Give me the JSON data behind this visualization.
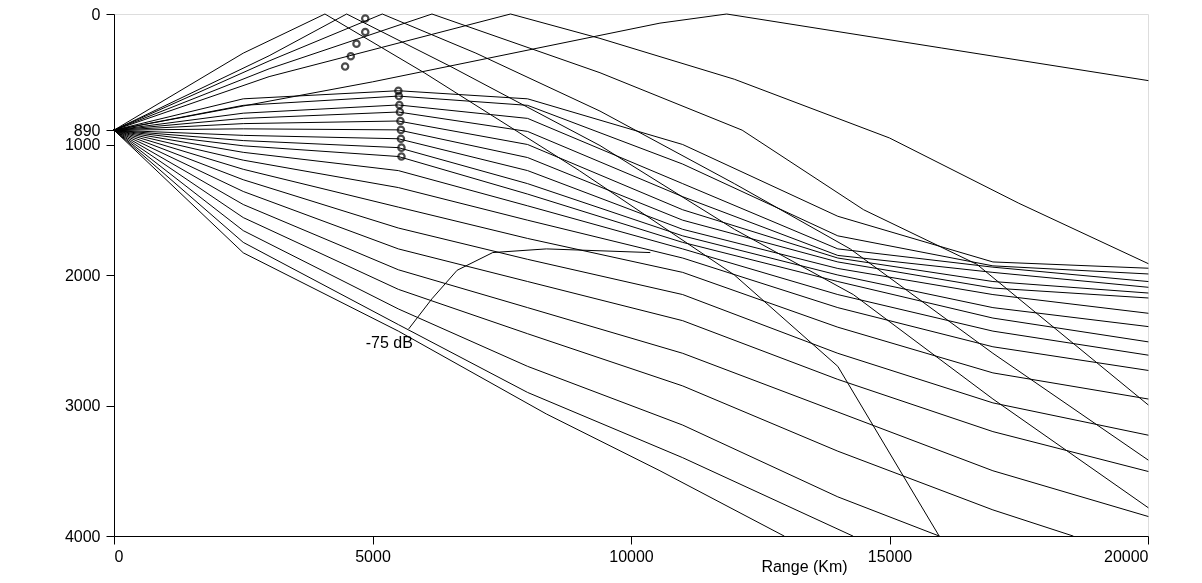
{
  "chart_data": {
    "type": "line",
    "xlabel": "Range (Km)",
    "xlim": [
      0,
      20000
    ],
    "xticks": [
      0,
      5000,
      10000,
      15000,
      20000
    ],
    "ylim": [
      4000,
      0
    ],
    "yticks": [
      0,
      890,
      1000,
      2000,
      3000,
      4000
    ],
    "grid": false,
    "marker": "none",
    "line_style": "solid",
    "annotations": [
      {
        "text": "-75 dB",
        "x": 5704,
        "y": 2411
      }
    ],
    "series": [
      {
        "color": "#000000",
        "x": [
          0,
          5000,
          10560,
          11850,
          16000,
          20000
        ],
        "values": [
          890,
          520,
          70,
          0,
          260,
          510
        ]
      },
      {
        "color": "#000000",
        "x": [
          0,
          3000,
          7670,
          9400,
          12000,
          15000,
          17500,
          20000
        ],
        "values": [
          890,
          480,
          0,
          187,
          500,
          950,
          1450,
          1912
        ]
      },
      {
        "color": "#000000",
        "x": [
          0,
          3000,
          6150,
          9400,
          12150,
          14500,
          16690,
          20000
        ],
        "values": [
          890,
          420,
          0,
          450,
          890,
          1500,
          1918,
          2994
        ]
      },
      {
        "color": "#000000",
        "x": [
          0,
          3000,
          5190,
          7000,
          9400,
          12000,
          14240,
          17000,
          20000
        ],
        "values": [
          890,
          360,
          0,
          300,
          744,
          1300,
          1800,
          2600,
          3417
        ]
      },
      {
        "color": "#000000",
        "x": [
          0,
          3000,
          4500,
          6500,
          9400,
          12000,
          14300,
          17000,
          20000
        ],
        "values": [
          890,
          320,
          0,
          400,
          1008,
          1650,
          2150,
          2950,
          3782
        ]
      },
      {
        "color": "#000000",
        "x": [
          0,
          2500,
          4080,
          6000,
          9000,
          12000,
          14000,
          15960
        ],
        "values": [
          890,
          300,
          0,
          450,
          1200,
          2000,
          2700,
          4000
        ]
      },
      {
        "color": "#000000",
        "x": [
          0,
          2500,
          5500,
          8000,
          11000,
          14000,
          17000,
          20000
        ],
        "values": [
          890,
          650,
          588,
          650,
          1000,
          1550,
          1900,
          1948
        ]
      },
      {
        "color": "#000000",
        "x": [
          0,
          2500,
          5500,
          8000,
          11000,
          14000,
          17000,
          20000
        ],
        "values": [
          890,
          700,
          629,
          700,
          1150,
          1700,
          1930,
          1992
        ]
      },
      {
        "color": "#000000",
        "x": [
          0,
          2500,
          5500,
          8000,
          11000,
          14000,
          17000,
          20000
        ],
        "values": [
          890,
          760,
          697,
          800,
          1300,
          1800,
          1940,
          2050
        ]
      },
      {
        "color": "#000000",
        "x": [
          0,
          2500,
          5500,
          8000,
          11000,
          14000,
          17000,
          20000
        ],
        "values": [
          890,
          800,
          751,
          900,
          1400,
          1850,
          1980,
          2094
        ]
      },
      {
        "color": "#000000",
        "x": [
          0,
          2500,
          5500,
          8000,
          11000,
          14000,
          17000,
          20000
        ],
        "values": [
          890,
          840,
          820,
          1000,
          1500,
          1870,
          2050,
          2138
        ]
      },
      {
        "color": "#000000",
        "x": [
          0,
          2500,
          5500,
          8000,
          11000,
          14000,
          17000,
          20000
        ],
        "values": [
          890,
          880,
          888,
          1100,
          1580,
          1900,
          2100,
          2176
        ]
      },
      {
        "color": "#000000",
        "x": [
          0,
          2500,
          5500,
          8000,
          11000,
          14000,
          17000,
          20000
        ],
        "values": [
          890,
          930,
          956,
          1200,
          1650,
          1950,
          2150,
          2293
        ]
      },
      {
        "color": "#000000",
        "x": [
          0,
          2500,
          5500,
          8000,
          11000,
          14000,
          17000,
          20000
        ],
        "values": [
          890,
          970,
          1024,
          1300,
          1700,
          2000,
          2250,
          2395
        ]
      },
      {
        "color": "#000000",
        "x": [
          0,
          2500,
          5500,
          8000,
          11000,
          14000,
          17000,
          20000
        ],
        "values": [
          890,
          1010,
          1092,
          1380,
          1750,
          2050,
          2330,
          2512
        ]
      },
      {
        "color": "#000000",
        "x": [
          0,
          2500,
          5500,
          8000,
          11000,
          14000,
          17000,
          20000
        ],
        "values": [
          890,
          1060,
          1200,
          1470,
          1800,
          2150,
          2430,
          2614
        ]
      },
      {
        "color": "#000000",
        "x": [
          0,
          2500,
          5500,
          8000,
          11000,
          14000,
          17000,
          20000
        ],
        "values": [
          890,
          1120,
          1330,
          1580,
          1870,
          2250,
          2550,
          2731
        ]
      },
      {
        "color": "#000000",
        "x": [
          0,
          2500,
          5500,
          8000,
          11000,
          14000,
          17000,
          20000
        ],
        "values": [
          890,
          1190,
          1480,
          1720,
          1980,
          2400,
          2750,
          2950
        ]
      },
      {
        "color": "#000000",
        "x": [
          0,
          2500,
          5500,
          8000,
          11000,
          14000,
          17000,
          20000
        ],
        "values": [
          890,
          1270,
          1640,
          1880,
          2150,
          2600,
          2980,
          3227
        ]
      },
      {
        "color": "#000000",
        "x": [
          0,
          2500,
          5500,
          8000,
          11000,
          14000,
          17000,
          20000
        ],
        "values": [
          890,
          1360,
          1800,
          2050,
          2350,
          2800,
          3200,
          3505
        ]
      },
      {
        "color": "#000000",
        "x": [
          0,
          2500,
          5500,
          8000,
          11000,
          14000,
          17000,
          20000
        ],
        "values": [
          890,
          1460,
          1960,
          2250,
          2600,
          3050,
          3500,
          3850
        ]
      },
      {
        "color": "#000000",
        "x": [
          0,
          2500,
          5500,
          8000,
          11000,
          14000,
          17000,
          18550
        ],
        "values": [
          890,
          1560,
          2110,
          2450,
          2850,
          3350,
          3800,
          4000
        ]
      },
      {
        "color": "#000000",
        "x": [
          0,
          2500,
          5500,
          8000,
          11000,
          14000,
          15960
        ],
        "values": [
          890,
          1660,
          2260,
          2700,
          3150,
          3700,
          4000
        ]
      },
      {
        "color": "#000000",
        "x": [
          0,
          2500,
          5500,
          8000,
          11000,
          14290
        ],
        "values": [
          890,
          1750,
          2380,
          2900,
          3400,
          4000
        ]
      },
      {
        "color": "#000000",
        "x": [
          0,
          2500,
          5500,
          8363,
          10560,
          12960
        ],
        "values": [
          890,
          1830,
          2430,
          3065,
          3500,
          4000
        ]
      },
      {
        "color": "#000000",
        "x": [
          5704,
          6150,
          6636,
          7326,
          8363,
          10366
        ],
        "values": [
          2411,
          2182,
          1964,
          1828,
          1800,
          1828
        ]
      },
      {
        "type": "scatter",
        "marker": "circle",
        "color": "#000000",
        "x": [
          4860,
          4860,
          4690,
          4580,
          4470,
          5500,
          5510,
          5520,
          5530,
          5540,
          5550,
          5550,
          5560,
          5560
        ],
        "values": [
          35,
          138,
          228,
          324,
          403,
          588,
          629,
          697,
          751,
          820,
          888,
          956,
          1024,
          1092
        ]
      }
    ]
  }
}
